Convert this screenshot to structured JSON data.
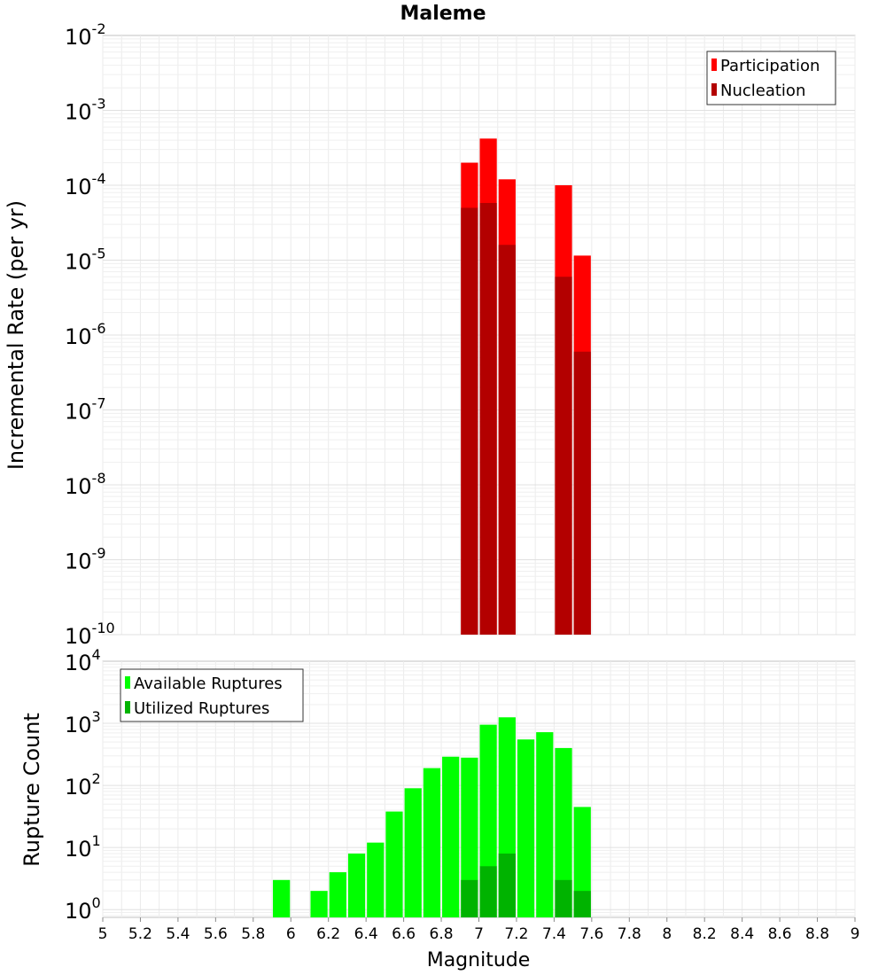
{
  "chart_data": [
    {
      "type": "bar",
      "title": "Maleme",
      "xlabel": "",
      "ylabel": "Incremental Rate (per yr)",
      "yscale": "log",
      "ylim": [
        1e-10,
        0.01
      ],
      "xlim": [
        5,
        9
      ],
      "bar_width": 0.1,
      "legend_position": "top-right",
      "y_tick_labels": [
        "10^-10",
        "10^-9",
        "10^-8",
        "10^-7",
        "10^-6",
        "10^-5",
        "10^-4",
        "10^-3",
        "10^-2"
      ],
      "series": [
        {
          "name": "Participation",
          "color": "#ff0000",
          "x": [
            6.95,
            7.05,
            7.15,
            7.45,
            7.55
          ],
          "values": [
            0.0002,
            0.00042,
            0.00012,
            0.0001,
            1.15e-05
          ]
        },
        {
          "name": "Nucleation",
          "color": "#b30000",
          "x": [
            6.95,
            7.05,
            7.15,
            7.45,
            7.55
          ],
          "values": [
            5e-05,
            5.8e-05,
            1.6e-05,
            6e-06,
            6e-07
          ]
        }
      ]
    },
    {
      "type": "bar",
      "title": "",
      "xlabel": "Magnitude",
      "ylabel": "Rupture Count",
      "yscale": "log",
      "ylim": [
        0.75,
        10000
      ],
      "xlim": [
        5,
        9
      ],
      "bar_width": 0.1,
      "legend_position": "top-left",
      "y_tick_labels": [
        "10^0",
        "10^1",
        "10^2",
        "10^3",
        "10^4"
      ],
      "x_tick_labels": [
        "5",
        "5.2",
        "5.4",
        "5.6",
        "5.8",
        "6",
        "6.2",
        "6.4",
        "6.6",
        "6.8",
        "7",
        "7.2",
        "7.4",
        "7.6",
        "7.8",
        "8",
        "8.2",
        "8.4",
        "8.6",
        "8.8",
        "9"
      ],
      "series": [
        {
          "name": "Available Ruptures",
          "color": "#00ff00",
          "x": [
            5.95,
            6.15,
            6.25,
            6.35,
            6.45,
            6.55,
            6.65,
            6.75,
            6.85,
            6.95,
            7.05,
            7.15,
            7.25,
            7.35,
            7.45,
            7.55
          ],
          "values": [
            3,
            2,
            4,
            8,
            12,
            38,
            90,
            190,
            290,
            280,
            950,
            1250,
            550,
            720,
            400,
            45
          ]
        },
        {
          "name": "Utilized Ruptures",
          "color": "#00b300",
          "x": [
            6.95,
            7.05,
            7.15,
            7.45,
            7.55
          ],
          "values": [
            3,
            5,
            8,
            3,
            2
          ]
        }
      ]
    }
  ]
}
